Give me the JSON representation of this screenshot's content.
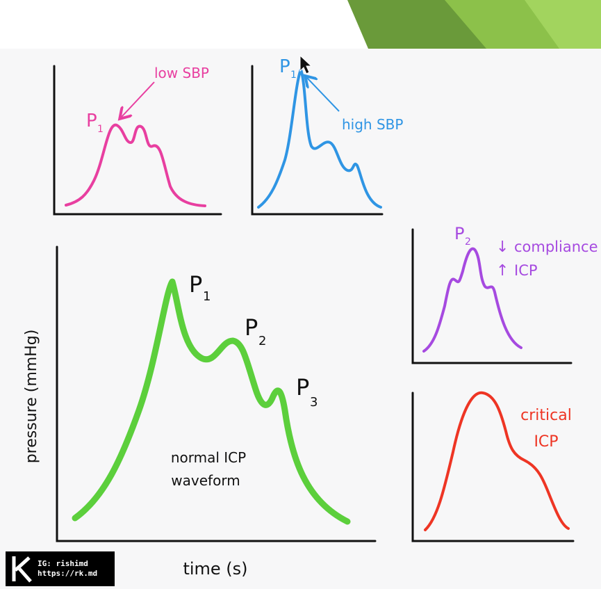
{
  "colors": {
    "normal": "#5ccf3c",
    "low_sbp": "#e83fa0",
    "high_sbp": "#2f95e4",
    "compliance": "#a64ae0",
    "critical": "#ee3524",
    "axis": "#111111",
    "slide_green_dark": "#6a9a3a",
    "slide_green_light": "#8cc14a"
  },
  "panels": {
    "main": {
      "peak1": "P",
      "peak1_sub": "1",
      "peak2": "P",
      "peak2_sub": "2",
      "peak3": "P",
      "peak3_sub": "3",
      "caption_line1": "normal ICP",
      "caption_line2": "waveform",
      "ylabel": "pressure (mmHg)",
      "xlabel": "time (s)"
    },
    "low_sbp": {
      "peak_label": "P",
      "peak_sub": "1",
      "annotation": "low SBP"
    },
    "high_sbp": {
      "peak_label": "P",
      "peak_sub": "1",
      "annotation": "high SBP"
    },
    "compliance": {
      "peak_label": "P",
      "peak_sub": "2",
      "arrow_down": "↓",
      "line1": "compliance",
      "arrow_up": "↑",
      "line2": "ICP"
    },
    "critical": {
      "line1": "critical",
      "line2": "ICP"
    }
  },
  "watermark": {
    "line1": "IG: rishimd",
    "line2": "https://rk.md"
  }
}
